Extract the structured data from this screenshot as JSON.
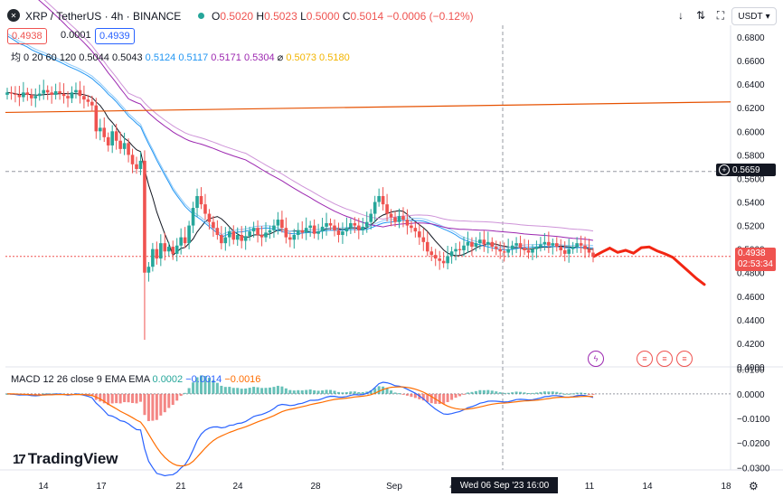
{
  "header": {
    "symbol": "XRP / TetherUS · 4h · BINANCE",
    "o_label": "O",
    "o_val": "0.5020",
    "h_label": "H",
    "h_val": "0.5023",
    "l_label": "L",
    "l_val": "0.5000",
    "c_label": "C",
    "c_val": "0.5014",
    "change": "−0.0006 (−0.12%)",
    "currency": "USDT",
    "bid": "0.4938",
    "spread": "0.0001",
    "ask": "0.4939"
  },
  "indicators": {
    "ma_label": "均 0 20 60 120",
    "ma_vals": [
      {
        "text": "0.5044",
        "color": "#131722"
      },
      {
        "text": "0.5043",
        "color": "#131722"
      },
      {
        "text": "0.5124",
        "color": "#2196f3"
      },
      {
        "text": "0.5117",
        "color": "#2196f3"
      },
      {
        "text": "0.5171",
        "color": "#9c27b0"
      },
      {
        "text": "0.5304",
        "color": "#9c27b0"
      },
      {
        "text": "⌀",
        "color": "#131722"
      },
      {
        "text": "0.5073",
        "color": "#f2b400"
      },
      {
        "text": "0.5180",
        "color": "#f2b400"
      }
    ],
    "macd_label": "MACD 12 26 close 9 EMA EMA",
    "macd_vals": [
      {
        "text": "0.0002",
        "color": "#26a69a"
      },
      {
        "text": "−0.0014",
        "color": "#2962ff"
      },
      {
        "text": "−0.0016",
        "color": "#ff6d00"
      }
    ]
  },
  "price_axis": [
    "0.6800",
    "0.6600",
    "0.6400",
    "0.6200",
    "0.6000",
    "0.5800",
    "0.5600",
    "0.5400",
    "0.5200",
    "0.5000",
    "0.4800",
    "0.4600",
    "0.4400",
    "0.4200",
    "0.4000"
  ],
  "macd_axis": [
    "0.0100",
    "0.0000",
    "−0.0100",
    "−0.0200",
    "−0.0300"
  ],
  "time_axis": [
    "14",
    "17",
    "21",
    "24",
    "28",
    "Sep",
    "4",
    "11",
    "14",
    "18"
  ],
  "crosshair_price": "0.5659",
  "last_price": {
    "value": "0.4938",
    "countdown": "02:53:34"
  },
  "crosshair_date": "Wed 06 Sep '23   16:00",
  "brand": "TradingView",
  "colors": {
    "up": "#26a69a",
    "down": "#ef5350",
    "ma20": "#131722",
    "ma60": "#2196f3",
    "ma120": "#9c27b0",
    "trend": "#e65100",
    "forecast": "#f22613",
    "macd": "#2962ff",
    "signal": "#ff6d00"
  },
  "chart_data": {
    "type": "candlestick",
    "ylim": [
      0.4,
      0.69
    ],
    "macd_ylim": [
      -0.031,
      0.011
    ],
    "ohlc_close": [
      0.633,
      0.632,
      0.631,
      0.629,
      0.633,
      0.631,
      0.628,
      0.63,
      0.632,
      0.635,
      0.633,
      0.631,
      0.634,
      0.632,
      0.63,
      0.628,
      0.633,
      0.635,
      0.63,
      0.627,
      0.625,
      0.622,
      0.6,
      0.603,
      0.595,
      0.588,
      0.6,
      0.592,
      0.585,
      0.59,
      0.58,
      0.572,
      0.568,
      0.575,
      0.48,
      0.485,
      0.5,
      0.492,
      0.505,
      0.498,
      0.502,
      0.496,
      0.503,
      0.51,
      0.505,
      0.52,
      0.535,
      0.545,
      0.538,
      0.53,
      0.523,
      0.518,
      0.512,
      0.505,
      0.51,
      0.515,
      0.508,
      0.512,
      0.507,
      0.511,
      0.515,
      0.518,
      0.512,
      0.51,
      0.514,
      0.516,
      0.52,
      0.525,
      0.518,
      0.51,
      0.508,
      0.512,
      0.516,
      0.514,
      0.518,
      0.52,
      0.513,
      0.515,
      0.519,
      0.522,
      0.52,
      0.516,
      0.512,
      0.515,
      0.518,
      0.522,
      0.52,
      0.516,
      0.519,
      0.523,
      0.53,
      0.54,
      0.545,
      0.538,
      0.53,
      0.527,
      0.523,
      0.528,
      0.525,
      0.52,
      0.518,
      0.515,
      0.51,
      0.506,
      0.498,
      0.495,
      0.492,
      0.49,
      0.488,
      0.494,
      0.498,
      0.5,
      0.499,
      0.503,
      0.506,
      0.502,
      0.505,
      0.508,
      0.504,
      0.506,
      0.502,
      0.5,
      0.498,
      0.497,
      0.5,
      0.503,
      0.505,
      0.501,
      0.499,
      0.497,
      0.5,
      0.502,
      0.504,
      0.506,
      0.503,
      0.505,
      0.502,
      0.499,
      0.496,
      0.5,
      0.502,
      0.505,
      0.503,
      0.5,
      0.497,
      0.494
    ],
    "forecast": [
      [
        0.4938,
        0.4975,
        0.5008,
        0.4972,
        0.499,
        0.4965,
        0.5012,
        0.5018,
        0.4985,
        0.496,
        0.493,
        0.487,
        0.481,
        0.475,
        0.47
      ]
    ],
    "trendline": [
      0.616,
      0.625
    ]
  }
}
